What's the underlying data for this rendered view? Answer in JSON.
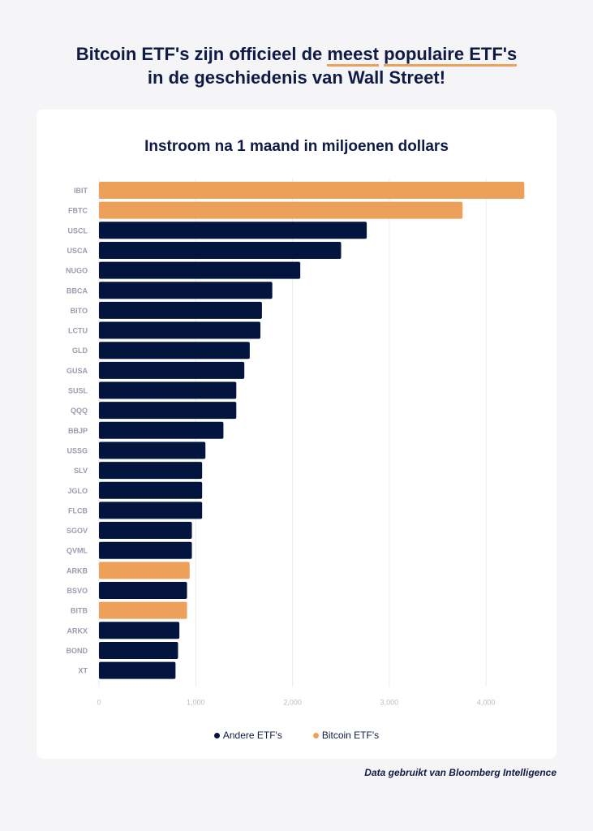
{
  "headline": {
    "part1": "Bitcoin ETF's zijn officieel de ",
    "hl1": "meest",
    "space": " ",
    "hl2": "populaire ETF's",
    "line2": "in de geschiedenis van Wall Street!"
  },
  "source": "Data gebruikt van Bloomberg Intelligence",
  "colors": {
    "other": "#03143f",
    "bitcoin": "#eda05a"
  },
  "chart_data": {
    "type": "bar",
    "orientation": "horizontal",
    "title": "Instroom na 1 maand in miljoenen dollars",
    "xlabel": "",
    "ylabel": "",
    "xlim": [
      0,
      4400
    ],
    "xticks": [
      0,
      1000,
      2000,
      3000,
      4000
    ],
    "xtick_labels": [
      "0",
      "1,000",
      "2,000",
      "3,000",
      "4,000"
    ],
    "grid": true,
    "legend_position": "bottom",
    "legend": [
      "Andere ETF's",
      "Bitcoin ETF's"
    ],
    "categories": [
      "IBIT",
      "FBTC",
      "USCL",
      "USCA",
      "NUGO",
      "BBCA",
      "BITO",
      "LCTU",
      "GLD",
      "GUSA",
      "SUSL",
      "QQQ",
      "BBJP",
      "USSG",
      "SLV",
      "JGLO",
      "FLCB",
      "SGOV",
      "QVML",
      "ARKB",
      "BSVO",
      "BITB",
      "ARKX",
      "BOND",
      "XT"
    ],
    "values": [
      4395,
      3757,
      2767,
      2502,
      2080,
      1791,
      1684,
      1668,
      1558,
      1502,
      1419,
      1419,
      1286,
      1100,
      1066,
      1066,
      1066,
      960,
      960,
      937,
      910,
      910,
      831,
      817,
      791
    ],
    "group": [
      "Bitcoin ETF's",
      "Bitcoin ETF's",
      "Andere ETF's",
      "Andere ETF's",
      "Andere ETF's",
      "Andere ETF's",
      "Andere ETF's",
      "Andere ETF's",
      "Andere ETF's",
      "Andere ETF's",
      "Andere ETF's",
      "Andere ETF's",
      "Andere ETF's",
      "Andere ETF's",
      "Andere ETF's",
      "Andere ETF's",
      "Andere ETF's",
      "Andere ETF's",
      "Andere ETF's",
      "Bitcoin ETF's",
      "Andere ETF's",
      "Bitcoin ETF's",
      "Andere ETF's",
      "Andere ETF's",
      "Andere ETF's"
    ]
  }
}
